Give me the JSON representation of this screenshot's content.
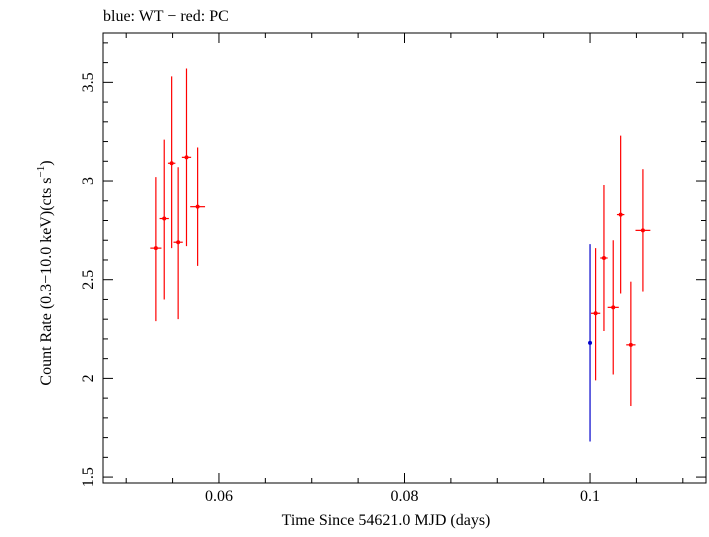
{
  "chart_data": {
    "type": "scatter",
    "title": "blue: WT − red: PC",
    "xlabel": "Time Since 54621.0 MJD (days)",
    "ylabel": "Count Rate (0.3−10.0 keV)(cts s",
    "ylabel_sup": "−1",
    "ylabel_close": ")",
    "xlim": [
      0.0475,
      0.1125
    ],
    "ylim": [
      1.47,
      3.75
    ],
    "xticks": [
      0.06,
      0.08,
      0.1
    ],
    "xtick_labels": [
      "0.06",
      "0.08",
      "0.1"
    ],
    "yticks": [
      1.5,
      2,
      2.5,
      3,
      3.5
    ],
    "ytick_labels": [
      "1.5",
      "2",
      "2.5",
      "3",
      "3.5"
    ],
    "grid": false,
    "series": [
      {
        "name": "WT",
        "color": "#0000cc",
        "points": [
          {
            "x": 0.1,
            "y": 2.18,
            "xerr": 0.0001,
            "yerr_low": 0.5,
            "yerr_high": 0.5
          }
        ]
      },
      {
        "name": "PC",
        "color": "#ff0000",
        "points": [
          {
            "x": 0.0532,
            "y": 2.66,
            "xerr": 0.0006,
            "yerr_low": 0.37,
            "yerr_high": 0.36
          },
          {
            "x": 0.0541,
            "y": 2.81,
            "xerr": 0.0005,
            "yerr_low": 0.41,
            "yerr_high": 0.4
          },
          {
            "x": 0.0549,
            "y": 3.09,
            "xerr": 0.0004,
            "yerr_low": 0.43,
            "yerr_high": 0.44
          },
          {
            "x": 0.0556,
            "y": 2.69,
            "xerr": 0.0005,
            "yerr_low": 0.39,
            "yerr_high": 0.38
          },
          {
            "x": 0.0565,
            "y": 3.12,
            "xerr": 0.0005,
            "yerr_low": 0.45,
            "yerr_high": 0.45
          },
          {
            "x": 0.0577,
            "y": 2.87,
            "xerr": 0.0008,
            "yerr_low": 0.3,
            "yerr_high": 0.3
          },
          {
            "x": 0.1006,
            "y": 2.33,
            "xerr": 0.0005,
            "yerr_low": 0.34,
            "yerr_high": 0.33
          },
          {
            "x": 0.1015,
            "y": 2.61,
            "xerr": 0.0004,
            "yerr_low": 0.37,
            "yerr_high": 0.37
          },
          {
            "x": 0.1025,
            "y": 2.36,
            "xerr": 0.0006,
            "yerr_low": 0.34,
            "yerr_high": 0.34
          },
          {
            "x": 0.1033,
            "y": 2.83,
            "xerr": 0.0004,
            "yerr_low": 0.4,
            "yerr_high": 0.4
          },
          {
            "x": 0.1044,
            "y": 2.17,
            "xerr": 0.0005,
            "yerr_low": 0.31,
            "yerr_high": 0.32
          },
          {
            "x": 0.1057,
            "y": 2.75,
            "xerr": 0.0008,
            "yerr_low": 0.31,
            "yerr_high": 0.31
          }
        ]
      }
    ]
  }
}
